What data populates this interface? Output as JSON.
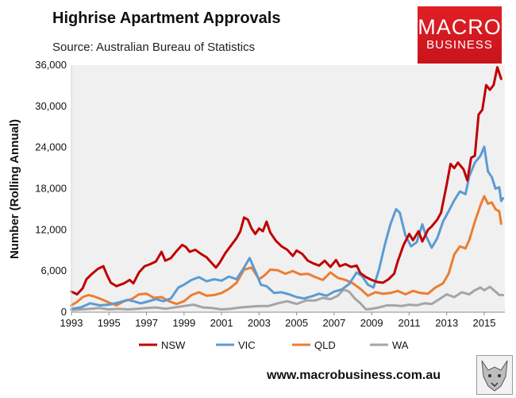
{
  "header": {
    "title": "Highrise Apartment Approvals",
    "subtitle": "Source: Australian Bureau of Statistics"
  },
  "logo": {
    "line1": "MACRO",
    "line2": "BUSINESS",
    "color": "#d71920"
  },
  "footer": {
    "website": "www.macrobusiness.com.au"
  },
  "chart_data": {
    "type": "line",
    "title": "Highrise Apartment Approvals",
    "subtitle": "Source: Australian Bureau of Statistics",
    "xlabel": "",
    "ylabel": "Number (Rolling Annual)",
    "xlim": [
      1993,
      2016.1
    ],
    "ylim": [
      0,
      36000
    ],
    "xticks": [
      1993,
      1995,
      1997,
      1999,
      2001,
      2003,
      2005,
      2007,
      2009,
      2011,
      2013,
      2015
    ],
    "yticks": [
      0,
      6000,
      12000,
      18000,
      24000,
      30000,
      36000
    ],
    "ytick_labels": [
      "0",
      "6,000",
      "12,000",
      "18,000",
      "24,000",
      "30,000",
      "36,000"
    ],
    "grid": false,
    "plot_background": "#f0f0f0",
    "legend_position": "bottom",
    "series": [
      {
        "name": "NSW",
        "color": "#c00000",
        "points": [
          [
            1993.0,
            3000
          ],
          [
            1993.3,
            2600
          ],
          [
            1993.6,
            3500
          ],
          [
            1993.8,
            4800
          ],
          [
            1994.1,
            5600
          ],
          [
            1994.4,
            6300
          ],
          [
            1994.7,
            6700
          ],
          [
            1994.9,
            5400
          ],
          [
            1995.1,
            4300
          ],
          [
            1995.4,
            3800
          ],
          [
            1995.8,
            4200
          ],
          [
            1996.1,
            4700
          ],
          [
            1996.3,
            4200
          ],
          [
            1996.6,
            5800
          ],
          [
            1996.9,
            6700
          ],
          [
            1997.2,
            7000
          ],
          [
            1997.5,
            7400
          ],
          [
            1997.8,
            8800
          ],
          [
            1998.0,
            7500
          ],
          [
            1998.3,
            7900
          ],
          [
            1998.6,
            8900
          ],
          [
            1998.9,
            9800
          ],
          [
            1999.1,
            9500
          ],
          [
            1999.3,
            8800
          ],
          [
            1999.6,
            9100
          ],
          [
            1999.9,
            8500
          ],
          [
            2000.2,
            8000
          ],
          [
            2000.5,
            7100
          ],
          [
            2000.7,
            6500
          ],
          [
            2000.9,
            7200
          ],
          [
            2001.2,
            8600
          ],
          [
            2001.5,
            9700
          ],
          [
            2001.8,
            10800
          ],
          [
            2002.0,
            11800
          ],
          [
            2002.2,
            13800
          ],
          [
            2002.4,
            13500
          ],
          [
            2002.6,
            12200
          ],
          [
            2002.8,
            11400
          ],
          [
            2003.0,
            12200
          ],
          [
            2003.2,
            11800
          ],
          [
            2003.4,
            13200
          ],
          [
            2003.6,
            11600
          ],
          [
            2003.9,
            10400
          ],
          [
            2004.2,
            9600
          ],
          [
            2004.5,
            9100
          ],
          [
            2004.8,
            8200
          ],
          [
            2005.0,
            9000
          ],
          [
            2005.3,
            8500
          ],
          [
            2005.6,
            7500
          ],
          [
            2005.9,
            7100
          ],
          [
            2006.2,
            6800
          ],
          [
            2006.5,
            7500
          ],
          [
            2006.8,
            6600
          ],
          [
            2007.1,
            7600
          ],
          [
            2007.3,
            6700
          ],
          [
            2007.6,
            7000
          ],
          [
            2007.9,
            6600
          ],
          [
            2008.2,
            6800
          ],
          [
            2008.4,
            5700
          ],
          [
            2008.7,
            5100
          ],
          [
            2009.0,
            4700
          ],
          [
            2009.3,
            4400
          ],
          [
            2009.6,
            4300
          ],
          [
            2009.9,
            4800
          ],
          [
            2010.2,
            5600
          ],
          [
            2010.4,
            7500
          ],
          [
            2010.7,
            9800
          ],
          [
            2011.0,
            11400
          ],
          [
            2011.2,
            10500
          ],
          [
            2011.5,
            11800
          ],
          [
            2011.7,
            10300
          ],
          [
            2012.0,
            12000
          ],
          [
            2012.2,
            12500
          ],
          [
            2012.5,
            13500
          ],
          [
            2012.7,
            14500
          ],
          [
            2013.0,
            18600
          ],
          [
            2013.2,
            21600
          ],
          [
            2013.4,
            21000
          ],
          [
            2013.6,
            21800
          ],
          [
            2013.9,
            20800
          ],
          [
            2014.1,
            19200
          ],
          [
            2014.3,
            22500
          ],
          [
            2014.5,
            22800
          ],
          [
            2014.7,
            28800
          ],
          [
            2014.9,
            29500
          ],
          [
            2015.1,
            33100
          ],
          [
            2015.3,
            32400
          ],
          [
            2015.5,
            33100
          ],
          [
            2015.7,
            35700
          ],
          [
            2015.9,
            34000
          ]
        ]
      },
      {
        "name": "VIC",
        "color": "#5b9bd5",
        "points": [
          [
            1993.0,
            500
          ],
          [
            1993.5,
            700
          ],
          [
            1994.0,
            1300
          ],
          [
            1994.5,
            1000
          ],
          [
            1995.0,
            1100
          ],
          [
            1995.5,
            1400
          ],
          [
            1996.0,
            1800
          ],
          [
            1996.3,
            1600
          ],
          [
            1996.7,
            1300
          ],
          [
            1997.0,
            1500
          ],
          [
            1997.5,
            1900
          ],
          [
            1997.9,
            1600
          ],
          [
            1998.3,
            2000
          ],
          [
            1998.7,
            3600
          ],
          [
            1999.0,
            4000
          ],
          [
            1999.4,
            4700
          ],
          [
            1999.8,
            5100
          ],
          [
            2000.2,
            4500
          ],
          [
            2000.6,
            4800
          ],
          [
            2001.0,
            4600
          ],
          [
            2001.4,
            5200
          ],
          [
            2001.8,
            4800
          ],
          [
            2002.2,
            6500
          ],
          [
            2002.5,
            7900
          ],
          [
            2002.8,
            6000
          ],
          [
            2003.1,
            4000
          ],
          [
            2003.4,
            3800
          ],
          [
            2003.8,
            2800
          ],
          [
            2004.2,
            2900
          ],
          [
            2004.6,
            2600
          ],
          [
            2005.0,
            2200
          ],
          [
            2005.4,
            2000
          ],
          [
            2005.8,
            2300
          ],
          [
            2006.2,
            2700
          ],
          [
            2006.6,
            2400
          ],
          [
            2007.0,
            3000
          ],
          [
            2007.4,
            3300
          ],
          [
            2007.8,
            4100
          ],
          [
            2008.2,
            5800
          ],
          [
            2008.5,
            5200
          ],
          [
            2008.8,
            4000
          ],
          [
            2009.1,
            3600
          ],
          [
            2009.4,
            6300
          ],
          [
            2009.7,
            9800
          ],
          [
            2010.0,
            12800
          ],
          [
            2010.3,
            15000
          ],
          [
            2010.5,
            14500
          ],
          [
            2010.8,
            11200
          ],
          [
            2011.1,
            9600
          ],
          [
            2011.4,
            10200
          ],
          [
            2011.7,
            12800
          ],
          [
            2011.9,
            11100
          ],
          [
            2012.2,
            9400
          ],
          [
            2012.5,
            10800
          ],
          [
            2012.8,
            13200
          ],
          [
            2013.1,
            14700
          ],
          [
            2013.4,
            16300
          ],
          [
            2013.7,
            17600
          ],
          [
            2014.0,
            17200
          ],
          [
            2014.2,
            19800
          ],
          [
            2014.5,
            21800
          ],
          [
            2014.8,
            22800
          ],
          [
            2015.0,
            24100
          ],
          [
            2015.2,
            20500
          ],
          [
            2015.4,
            19700
          ],
          [
            2015.6,
            18000
          ],
          [
            2015.8,
            18200
          ],
          [
            2015.9,
            16200
          ],
          [
            2016.0,
            16600
          ]
        ]
      },
      {
        "name": "QLD",
        "color": "#ed7d31",
        "points": [
          [
            1993.0,
            1000
          ],
          [
            1993.3,
            1500
          ],
          [
            1993.6,
            2200
          ],
          [
            1993.9,
            2500
          ],
          [
            1994.2,
            2300
          ],
          [
            1994.6,
            1900
          ],
          [
            1995.0,
            1400
          ],
          [
            1995.4,
            1000
          ],
          [
            1995.8,
            1600
          ],
          [
            1996.2,
            1900
          ],
          [
            1996.6,
            2600
          ],
          [
            1997.0,
            2700
          ],
          [
            1997.4,
            2100
          ],
          [
            1997.8,
            2200
          ],
          [
            1998.2,
            1600
          ],
          [
            1998.6,
            1200
          ],
          [
            1999.0,
            1600
          ],
          [
            1999.4,
            2500
          ],
          [
            1999.8,
            2900
          ],
          [
            2000.2,
            2400
          ],
          [
            2000.6,
            2500
          ],
          [
            2001.0,
            2800
          ],
          [
            2001.4,
            3400
          ],
          [
            2001.8,
            4300
          ],
          [
            2002.2,
            6200
          ],
          [
            2002.6,
            6500
          ],
          [
            2003.0,
            4800
          ],
          [
            2003.3,
            5400
          ],
          [
            2003.6,
            6200
          ],
          [
            2004.0,
            6100
          ],
          [
            2004.4,
            5600
          ],
          [
            2004.8,
            6000
          ],
          [
            2005.2,
            5500
          ],
          [
            2005.6,
            5600
          ],
          [
            2006.0,
            5100
          ],
          [
            2006.4,
            4700
          ],
          [
            2006.8,
            5800
          ],
          [
            2007.2,
            5000
          ],
          [
            2007.6,
            4700
          ],
          [
            2008.0,
            4200
          ],
          [
            2008.4,
            3400
          ],
          [
            2008.8,
            2400
          ],
          [
            2009.2,
            2900
          ],
          [
            2009.6,
            2700
          ],
          [
            2010.0,
            2800
          ],
          [
            2010.4,
            3100
          ],
          [
            2010.8,
            2600
          ],
          [
            2011.2,
            3100
          ],
          [
            2011.6,
            2800
          ],
          [
            2012.0,
            2700
          ],
          [
            2012.4,
            3600
          ],
          [
            2012.8,
            4200
          ],
          [
            2013.1,
            5600
          ],
          [
            2013.4,
            8400
          ],
          [
            2013.7,
            9600
          ],
          [
            2014.0,
            9300
          ],
          [
            2014.2,
            10500
          ],
          [
            2014.5,
            13200
          ],
          [
            2014.8,
            15600
          ],
          [
            2015.0,
            16900
          ],
          [
            2015.2,
            15800
          ],
          [
            2015.4,
            16000
          ],
          [
            2015.6,
            15000
          ],
          [
            2015.8,
            14700
          ],
          [
            2015.9,
            12900
          ]
        ]
      },
      {
        "name": "WA",
        "color": "#a5a5a5",
        "points": [
          [
            1993.0,
            300
          ],
          [
            1993.5,
            400
          ],
          [
            1994.0,
            500
          ],
          [
            1994.5,
            600
          ],
          [
            1995.0,
            400
          ],
          [
            1995.5,
            500
          ],
          [
            1996.0,
            400
          ],
          [
            1996.5,
            500
          ],
          [
            1997.0,
            600
          ],
          [
            1997.5,
            700
          ],
          [
            1998.0,
            500
          ],
          [
            1998.5,
            700
          ],
          [
            1999.0,
            900
          ],
          [
            1999.5,
            1100
          ],
          [
            2000.0,
            700
          ],
          [
            2000.5,
            600
          ],
          [
            2001.0,
            400
          ],
          [
            2001.5,
            500
          ],
          [
            2002.0,
            700
          ],
          [
            2002.5,
            800
          ],
          [
            2003.0,
            900
          ],
          [
            2003.5,
            900
          ],
          [
            2004.0,
            1300
          ],
          [
            2004.5,
            1600
          ],
          [
            2005.0,
            1200
          ],
          [
            2005.5,
            1700
          ],
          [
            2006.0,
            1700
          ],
          [
            2006.4,
            2100
          ],
          [
            2006.8,
            1900
          ],
          [
            2007.2,
            2400
          ],
          [
            2007.5,
            3300
          ],
          [
            2007.8,
            3000
          ],
          [
            2008.1,
            2000
          ],
          [
            2008.4,
            1300
          ],
          [
            2008.7,
            400
          ],
          [
            2009.0,
            500
          ],
          [
            2009.4,
            700
          ],
          [
            2009.8,
            1000
          ],
          [
            2010.2,
            1000
          ],
          [
            2010.6,
            900
          ],
          [
            2011.0,
            1100
          ],
          [
            2011.4,
            1000
          ],
          [
            2011.8,
            1300
          ],
          [
            2012.2,
            1200
          ],
          [
            2012.6,
            1900
          ],
          [
            2013.0,
            2600
          ],
          [
            2013.4,
            2200
          ],
          [
            2013.8,
            2900
          ],
          [
            2014.2,
            2600
          ],
          [
            2014.5,
            3200
          ],
          [
            2014.8,
            3600
          ],
          [
            2015.0,
            3200
          ],
          [
            2015.3,
            3700
          ],
          [
            2015.6,
            3000
          ],
          [
            2015.8,
            2500
          ],
          [
            2016.0,
            2500
          ]
        ]
      }
    ]
  }
}
